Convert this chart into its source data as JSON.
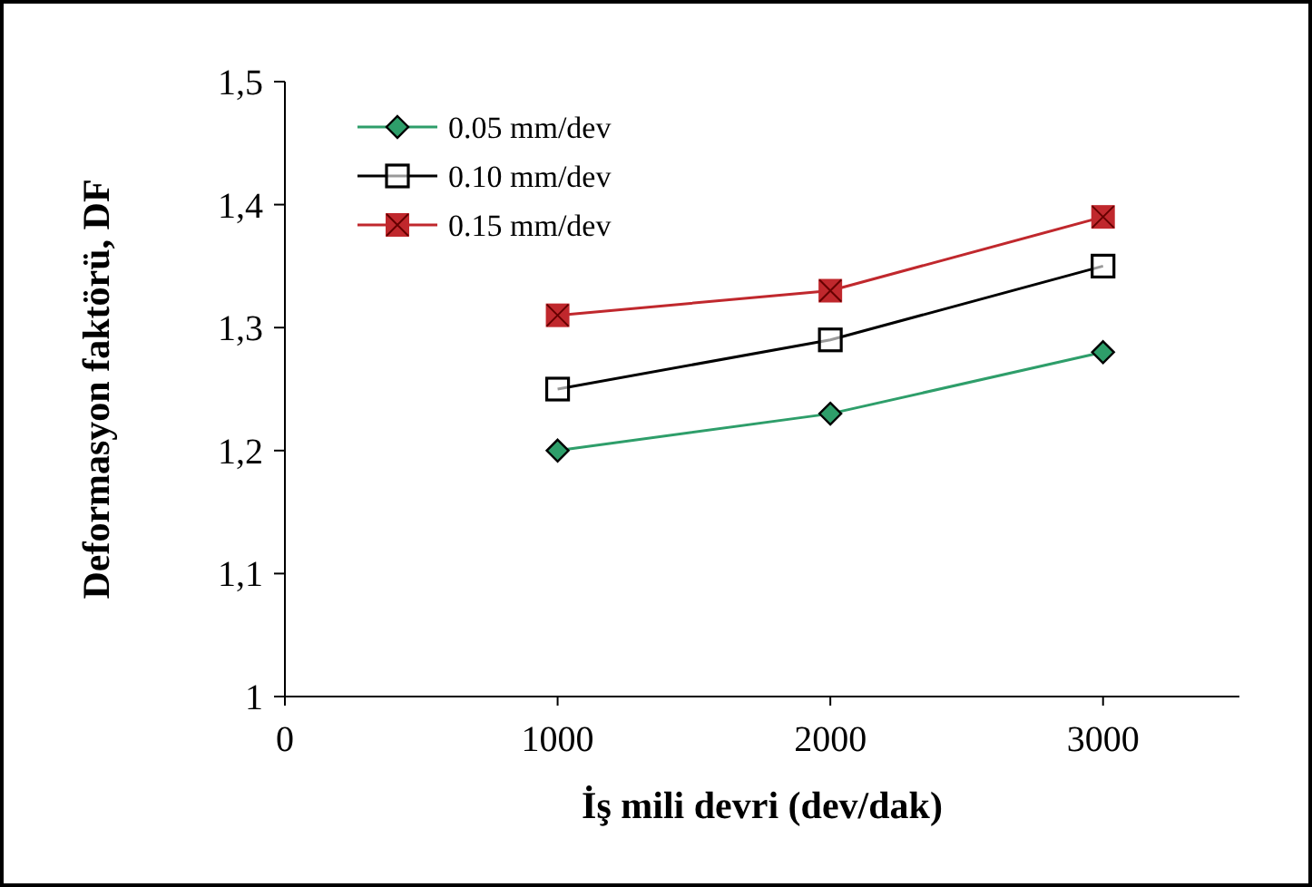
{
  "chart_data": {
    "type": "line",
    "xlabel": "İş mili devri (dev/dak)",
    "ylabel": "Deformasyon faktörü, DF",
    "x": [
      1000,
      2000,
      3000
    ],
    "series": [
      {
        "name": "0.05 mm/dev",
        "color": "#2e9e6a",
        "values": [
          1.2,
          1.23,
          1.28
        ],
        "marker": "diamond"
      },
      {
        "name": "0.10 mm/dev",
        "color": "#000000",
        "values": [
          1.25,
          1.29,
          1.35
        ],
        "marker": "square"
      },
      {
        "name": "0.15 mm/dev",
        "color": "#c0282d",
        "values": [
          1.31,
          1.33,
          1.39
        ],
        "marker": "square"
      }
    ],
    "xlim": [
      0,
      3500
    ],
    "xticks": [
      0,
      1000,
      2000,
      3000
    ],
    "ylim": [
      1,
      1.5
    ],
    "yticks": [
      {
        "value": 1,
        "label": "1"
      },
      {
        "value": 1.1,
        "label": "1,1"
      },
      {
        "value": 1.2,
        "label": "1,2"
      },
      {
        "value": 1.3,
        "label": "1,3"
      },
      {
        "value": 1.4,
        "label": "1,4"
      },
      {
        "value": 1.5,
        "label": "1,5"
      }
    ],
    "grid": false,
    "legend": "top left",
    "line_style": "solid"
  }
}
